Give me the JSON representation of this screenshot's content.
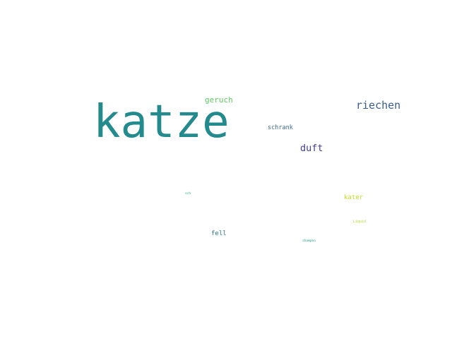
{
  "word_cloud": {
    "words": [
      {
        "id": "katze",
        "text": "katze",
        "color": "#238a8d"
      },
      {
        "id": "riechen",
        "text": "riechen",
        "color": "#3a5e8c"
      },
      {
        "id": "geruch",
        "text": "geruch",
        "color": "#5ec962"
      },
      {
        "id": "schrank",
        "text": "schrank",
        "color": "#3b6c94"
      },
      {
        "id": "duft",
        "text": "duft",
        "color": "#433e85"
      },
      {
        "id": "sch",
        "text": "sch",
        "color": "#22a884"
      },
      {
        "id": "kater",
        "text": "kater",
        "color": "#c0df25"
      },
      {
        "id": "liquid",
        "text": "Liquid",
        "color": "#addc30"
      },
      {
        "id": "fell",
        "text": "fell",
        "color": "#2a788e"
      },
      {
        "id": "shampoo",
        "text": "shampoo",
        "color": "#1f9e89"
      }
    ]
  }
}
